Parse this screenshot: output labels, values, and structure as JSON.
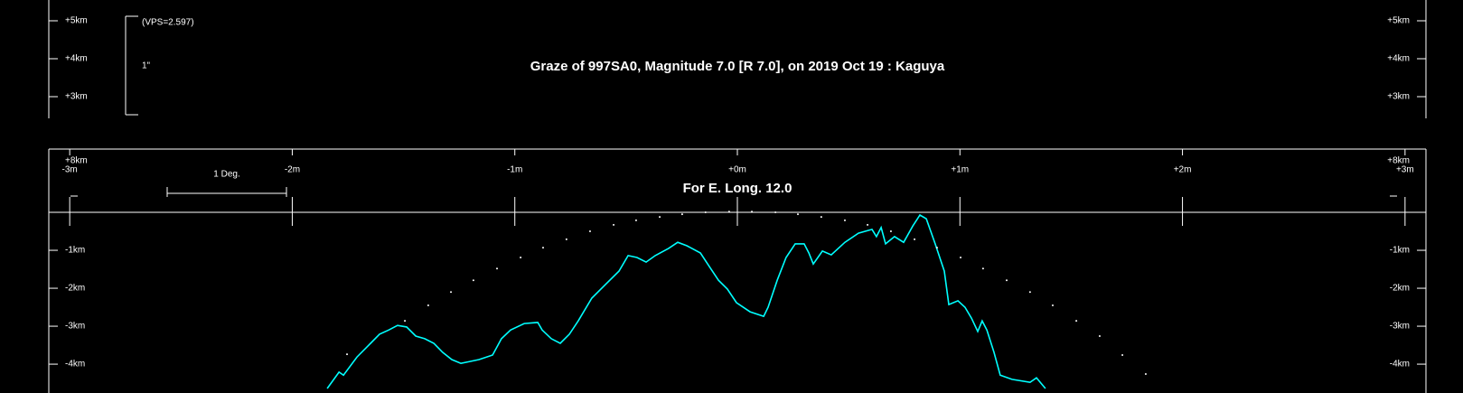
{
  "chart_data": {
    "type": "line",
    "title": "Graze of  997SA0,  Magnitude 7.0 [R 7.0],  on 2019 Oct 19  :  Kaguya",
    "subtitle": "For E. Long. 12.0",
    "vps_label": "(VPS=2.597)",
    "scale_label": "1\"",
    "degree_label": "1 Deg.",
    "top_axis_label": "+8km",
    "scale_panel": {
      "ylim": [
        2.452,
        5.548
      ],
      "yticks": [
        {
          "value": 5,
          "label": "+5km"
        },
        {
          "value": 4,
          "label": "+4km"
        },
        {
          "value": 3,
          "label": "+3km"
        }
      ]
    },
    "xlim": [
      -3.094,
      3.094
    ],
    "xticks": [
      {
        "value": -3,
        "label": "-3m"
      },
      {
        "value": -2,
        "label": "-2m"
      },
      {
        "value": -1,
        "label": "-1m"
      },
      {
        "value": 0,
        "label": "+0m"
      },
      {
        "value": 1,
        "label": "+1m"
      },
      {
        "value": 2,
        "label": "+2m"
      },
      {
        "value": 3,
        "label": "+3m"
      }
    ],
    "ylim": [
      -4.76,
      1.667
    ],
    "yticks": [
      {
        "value": -1,
        "label": "-1km"
      },
      {
        "value": -2,
        "label": "-2km"
      },
      {
        "value": -3,
        "label": "-3km"
      },
      {
        "value": -4,
        "label": "-4km"
      }
    ],
    "zero_line": true,
    "series": [
      {
        "color": "#00ffff",
        "style": "line",
        "x": [
          -1.843,
          -1.79,
          -1.77,
          -1.709,
          -1.648,
          -1.608,
          -1.567,
          -1.527,
          -1.486,
          -1.445,
          -1.405,
          -1.364,
          -1.324,
          -1.283,
          -1.242,
          -1.202,
          -1.161,
          -1.1,
          -1.06,
          -1.019,
          -0.958,
          -0.897,
          -0.877,
          -0.836,
          -0.796,
          -0.755,
          -0.715,
          -0.654,
          -0.593,
          -0.532,
          -0.491,
          -0.451,
          -0.41,
          -0.369,
          -0.309,
          -0.268,
          -0.227,
          -0.166,
          -0.126,
          -0.085,
          -0.045,
          -0.004,
          0.057,
          0.118,
          0.138,
          0.179,
          0.219,
          0.26,
          0.3,
          0.321,
          0.341,
          0.382,
          0.422,
          0.483,
          0.544,
          0.605,
          0.625,
          0.646,
          0.666,
          0.706,
          0.747,
          0.788,
          0.82,
          0.849,
          0.889,
          0.93,
          0.95,
          0.991,
          1.023,
          1.052,
          1.08,
          1.1,
          1.121,
          1.153,
          1.181,
          1.234,
          1.315,
          1.344,
          1.384
        ],
        "y": [
          -4.64,
          -4.21,
          -4.29,
          -3.81,
          -3.45,
          -3.21,
          -3.1,
          -2.98,
          -3.02,
          -3.26,
          -3.33,
          -3.45,
          -3.69,
          -3.88,
          -3.98,
          -3.93,
          -3.88,
          -3.76,
          -3.33,
          -3.1,
          -2.93,
          -2.9,
          -3.1,
          -3.33,
          -3.45,
          -3.21,
          -2.86,
          -2.26,
          -1.9,
          -1.55,
          -1.14,
          -1.19,
          -1.31,
          -1.14,
          -0.95,
          -0.79,
          -0.88,
          -1.07,
          -1.43,
          -1.79,
          -2.02,
          -2.38,
          -2.62,
          -2.74,
          -2.5,
          -1.79,
          -1.19,
          -0.83,
          -0.83,
          -1.07,
          -1.36,
          -1.02,
          -1.12,
          -0.79,
          -0.55,
          -0.45,
          -0.64,
          -0.4,
          -0.83,
          -0.64,
          -0.79,
          -0.36,
          -0.07,
          -0.17,
          -0.83,
          -1.55,
          -2.43,
          -2.33,
          -2.5,
          -2.79,
          -3.14,
          -2.86,
          -3.1,
          -3.69,
          -4.29,
          -4.4,
          -4.48,
          -4.36,
          -4.64
        ]
      },
      {
        "color": "#ffffff",
        "style": "dots",
        "x": [
          -1.754,
          -1.494,
          -1.389,
          -1.287,
          -1.186,
          -1.08,
          -0.974,
          -0.873,
          -0.768,
          -0.662,
          -0.556,
          -0.455,
          -0.349,
          -0.248,
          -0.143,
          -0.037,
          0.065,
          0.171,
          0.272,
          0.377,
          0.483,
          0.585,
          0.69,
          0.796,
          0.897,
          1.003,
          1.104,
          1.21,
          1.315,
          1.417,
          1.523,
          1.628,
          1.73,
          1.835
        ],
        "y": [
          -3.74,
          -2.86,
          -2.45,
          -2.1,
          -1.79,
          -1.48,
          -1.19,
          -0.93,
          -0.71,
          -0.5,
          -0.33,
          -0.21,
          -0.12,
          -0.05,
          0.0,
          0.02,
          0.02,
          0.0,
          -0.05,
          -0.12,
          -0.21,
          -0.33,
          -0.5,
          -0.71,
          -0.93,
          -1.19,
          -1.48,
          -1.79,
          -2.1,
          -2.45,
          -2.86,
          -3.26,
          -3.76,
          -4.26
        ]
      }
    ]
  }
}
